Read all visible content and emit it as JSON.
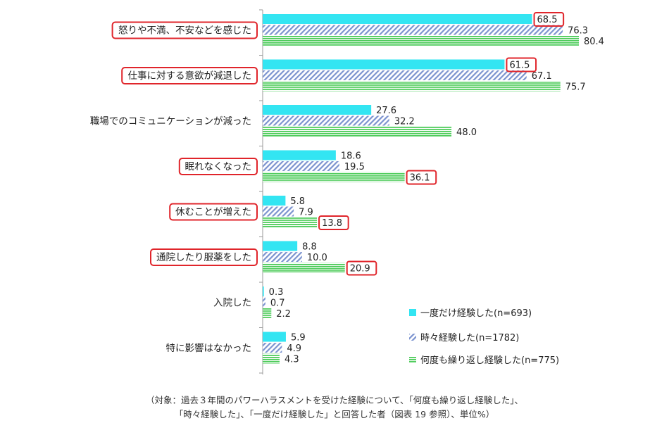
{
  "chart_data": {
    "type": "bar",
    "orientation": "horizontal",
    "categories": [
      "怒りや不満、不安などを感じた",
      "仕事に対する意欲が減退した",
      "職場でのコミュニケーションが減った",
      "眠れなくなった",
      "休むことが増えた",
      "通院したり服薬をした",
      "入院した",
      "特に影響はなかった"
    ],
    "series": [
      {
        "name": "一度だけ経験した(n=693)",
        "color": "#33e5f2",
        "pattern": "solid",
        "values": [
          68.5,
          61.5,
          27.6,
          18.6,
          5.8,
          8.8,
          0.3,
          5.9
        ]
      },
      {
        "name": "時々経験した(n=1782)",
        "color": "#7b93cf",
        "pattern": "diagonal-hatch",
        "values": [
          76.3,
          67.1,
          32.2,
          19.5,
          7.9,
          10.0,
          0.7,
          4.9
        ]
      },
      {
        "name": "何度も繰り返し経験した(n=775)",
        "color": "#4fcc5c",
        "pattern": "horizontal-stripes",
        "values": [
          80.4,
          75.7,
          48.0,
          36.1,
          13.8,
          20.9,
          2.2,
          4.3
        ]
      }
    ],
    "value_labels": {
      "0": [
        "68.5",
        "76.3",
        "80.4"
      ],
      "1": [
        "61.5",
        "67.1",
        "75.7"
      ],
      "2": [
        "27.6",
        "32.2",
        "48.0"
      ],
      "3": [
        "18.6",
        "19.5",
        "36.1"
      ],
      "4": [
        "5.8",
        "7.9",
        "13.8"
      ],
      "5": [
        "8.8",
        "10.0",
        "20.9"
      ],
      "6": [
        "0.3",
        "0.7",
        "2.2"
      ],
      "7": [
        "5.9",
        "4.9",
        "4.3"
      ]
    },
    "highlighted_categories": [
      0,
      1,
      3,
      4,
      5
    ],
    "highlighted_values": [
      [
        0,
        0
      ],
      [
        1,
        0
      ],
      [
        3,
        2
      ],
      [
        4,
        2
      ],
      [
        5,
        2
      ]
    ],
    "highlight_color": "#e0252b",
    "xlim": [
      0,
      100
    ],
    "grid": false,
    "legend_position": "bottom-right"
  },
  "footnote": {
    "line1": "（対象：過去３年間のパワーハラスメントを受けた経験について、「何度も繰り返し経験した」、",
    "line2": "「時々経験した」、「一度だけ経験した」と回答した者（図表 19 参照）、単位%）"
  }
}
